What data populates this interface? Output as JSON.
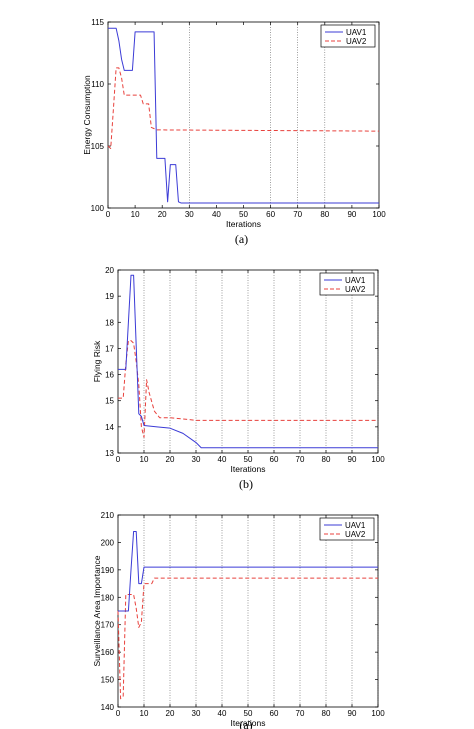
{
  "chart_data": [
    {
      "type": "line",
      "caption": "(a)",
      "xlabel": "Iterations",
      "ylabel": "Energy Consumption",
      "xlim": [
        0,
        100
      ],
      "ylim": [
        100,
        115
      ],
      "xticks": [
        0,
        10,
        20,
        30,
        40,
        50,
        60,
        70,
        80,
        90,
        100
      ],
      "yticks": [
        100,
        105,
        110,
        115
      ],
      "xtick_labels": [
        "0",
        "10",
        "20",
        "30",
        "40",
        "50",
        "60",
        "70",
        "80",
        "90",
        "100"
      ],
      "ytick_labels": [
        "100",
        "105",
        "110",
        "115"
      ],
      "grid": "vertical dotted lines at x = 30, 60, 70, 80",
      "legend_position": "top-right",
      "series": [
        {
          "name": "UAV1",
          "style": "solid",
          "color": "#3b3bd6",
          "x": [
            0,
            3,
            4,
            5,
            6,
            9,
            10,
            11,
            17,
            18,
            21,
            22,
            23,
            25,
            26,
            27,
            100
          ],
          "y": [
            114.5,
            114.5,
            113.5,
            112,
            111.1,
            111.1,
            114.2,
            114.2,
            114.2,
            104,
            104,
            100.5,
            103.5,
            103.5,
            100.5,
            100.4,
            100.4
          ]
        },
        {
          "name": "UAV2",
          "style": "dashed",
          "color": "#e8413c",
          "x": [
            0,
            1,
            2,
            3,
            4,
            5,
            6,
            7,
            12,
            13,
            15,
            16,
            17,
            18,
            100
          ],
          "y": [
            105,
            104.8,
            108,
            111.3,
            111.3,
            110.5,
            109.1,
            109.1,
            109.1,
            108.4,
            108.4,
            106.5,
            106.4,
            106.3,
            106.2
          ]
        }
      ]
    },
    {
      "type": "line",
      "caption": "(b)",
      "xlabel": "Iterations",
      "ylabel": "Flying Risk",
      "xlim": [
        0,
        100
      ],
      "ylim": [
        13,
        20
      ],
      "xticks": [
        0,
        10,
        20,
        30,
        40,
        50,
        60,
        70,
        80,
        90,
        100
      ],
      "yticks": [
        13,
        14,
        15,
        16,
        17,
        18,
        19,
        20
      ],
      "xtick_labels": [
        "0",
        "10",
        "20",
        "30",
        "40",
        "50",
        "60",
        "70",
        "80",
        "90",
        "100"
      ],
      "ytick_labels": [
        "13",
        "14",
        "15",
        "16",
        "17",
        "18",
        "19",
        "20"
      ],
      "grid": "vertical dotted lines at x = 10, 20, 30, 40, 50, 60, 70, 80, 90, 100",
      "legend_position": "top-right",
      "series": [
        {
          "name": "UAV1",
          "style": "solid",
          "color": "#3b3bd6",
          "x": [
            0,
            2,
            3,
            4,
            5,
            6,
            7,
            8,
            9,
            10,
            15,
            20,
            25,
            30,
            32,
            40,
            50,
            100
          ],
          "y": [
            16.2,
            16.2,
            16.2,
            18,
            19.8,
            19.8,
            17.1,
            14.5,
            14.4,
            14.05,
            14,
            13.95,
            13.75,
            13.4,
            13.2,
            13.2,
            13.2,
            13.2
          ]
        },
        {
          "name": "UAV2",
          "style": "dashed",
          "color": "#e8413c",
          "x": [
            0,
            2,
            3,
            4,
            5,
            6,
            7,
            8,
            9,
            10,
            11,
            12,
            14,
            16,
            20,
            25,
            30,
            100
          ],
          "y": [
            15.1,
            15.1,
            16.4,
            17.3,
            17.3,
            17.2,
            16.5,
            15.6,
            14,
            13.6,
            15.8,
            15.3,
            14.6,
            14.35,
            14.35,
            14.3,
            14.25,
            14.25
          ]
        }
      ]
    },
    {
      "type": "line",
      "caption": "(a)",
      "xlabel": "Iterations",
      "ylabel": "Surveillance Area Importance",
      "xlim": [
        0,
        100
      ],
      "ylim": [
        140,
        210
      ],
      "xticks": [
        0,
        10,
        20,
        30,
        40,
        50,
        60,
        70,
        80,
        90,
        100
      ],
      "yticks": [
        140,
        150,
        160,
        170,
        180,
        190,
        200,
        210
      ],
      "xtick_labels": [
        "0",
        "10",
        "20",
        "30",
        "40",
        "50",
        "60",
        "70",
        "80",
        "90",
        "100"
      ],
      "ytick_labels": [
        "140",
        "150",
        "160",
        "170",
        "180",
        "190",
        "200",
        "210"
      ],
      "grid": "vertical dotted lines at x = 10, 20, 30, 40, 50, 60, 70, 80, 90, 100",
      "legend_position": "top-right",
      "series": [
        {
          "name": "UAV1",
          "style": "solid",
          "color": "#3b3bd6",
          "x": [
            0,
            2,
            4,
            5,
            6,
            7,
            8,
            9,
            10,
            100
          ],
          "y": [
            175,
            175,
            175,
            190,
            204,
            204,
            185,
            185,
            191,
            191
          ]
        },
        {
          "name": "UAV2",
          "style": "dashed",
          "color": "#e8413c",
          "x": [
            0,
            1,
            2,
            3,
            4,
            6,
            7,
            8,
            9,
            10,
            11,
            13,
            14,
            100
          ],
          "y": [
            175,
            143,
            144,
            181,
            181,
            181,
            176,
            169,
            171,
            185,
            185,
            185,
            187,
            187
          ]
        }
      ]
    }
  ]
}
